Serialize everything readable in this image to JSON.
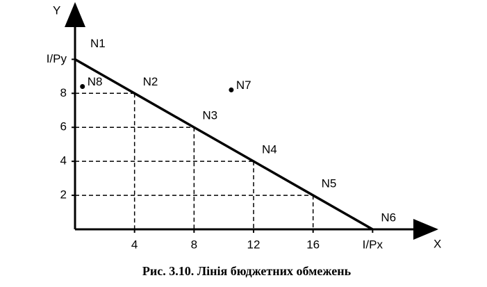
{
  "chart_data": {
    "type": "budget",
    "title": "Рис. 3.10. Лінія бюджетних обмежень",
    "xlabel": "X",
    "ylabel": "Y",
    "xlim": [
      0,
      24
    ],
    "ylim": [
      0,
      13
    ],
    "xticks": [
      4,
      8,
      12,
      16,
      {
        "value": 20,
        "label": "I/Px"
      }
    ],
    "yticks": [
      2,
      4,
      6,
      8,
      {
        "value": 10,
        "label": "I/Py"
      }
    ],
    "budget_line": {
      "x": [
        0,
        4,
        8,
        12,
        16,
        20
      ],
      "y": [
        10,
        8,
        6,
        4,
        2,
        0
      ],
      "labels": [
        "N1",
        "N2",
        "N3",
        "N4",
        "N5",
        "N6"
      ]
    },
    "points": {
      "x": [
        10.5,
        0.5
      ],
      "y": [
        8.2,
        8.4
      ],
      "labels": [
        "N7",
        "N8"
      ]
    },
    "color": "#000000"
  }
}
